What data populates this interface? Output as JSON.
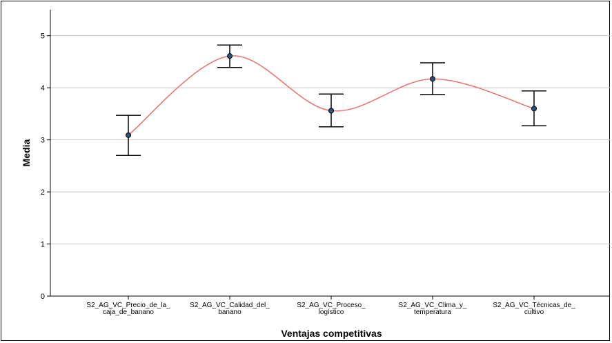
{
  "chart_data": {
    "type": "line",
    "categories": [
      [
        "S2_AG_VC_Precio_de_la_",
        "caja_de_banano"
      ],
      [
        "S2_AG_VC_Calidad_del_",
        "banano"
      ],
      [
        "S2_AG_VC_Proceso_",
        "logístico"
      ],
      [
        "S2_AG_VC_Clima_y_",
        "temperatura"
      ],
      [
        "S2_AG_VC_Técnicas_de_",
        "cultivo"
      ]
    ],
    "series": [
      {
        "values": [
          3.09,
          4.61,
          3.56,
          4.17,
          3.6
        ],
        "error_low": [
          2.7,
          4.39,
          3.25,
          3.87,
          3.27
        ],
        "error_high": [
          3.47,
          4.82,
          3.88,
          4.48,
          3.94
        ]
      }
    ],
    "xlabel": "Ventajas competitivas",
    "ylabel": "Media",
    "ylim": [
      0,
      5.5
    ],
    "yticks": [
      0,
      1,
      2,
      3,
      4,
      5
    ],
    "grid": true,
    "colors": {
      "line": "#e8736f",
      "point_fill": "#2f4f7f",
      "point_stroke": "#000000",
      "error_bar": "#000000",
      "grid": "#c8c8c8",
      "axis": "#000000"
    }
  }
}
